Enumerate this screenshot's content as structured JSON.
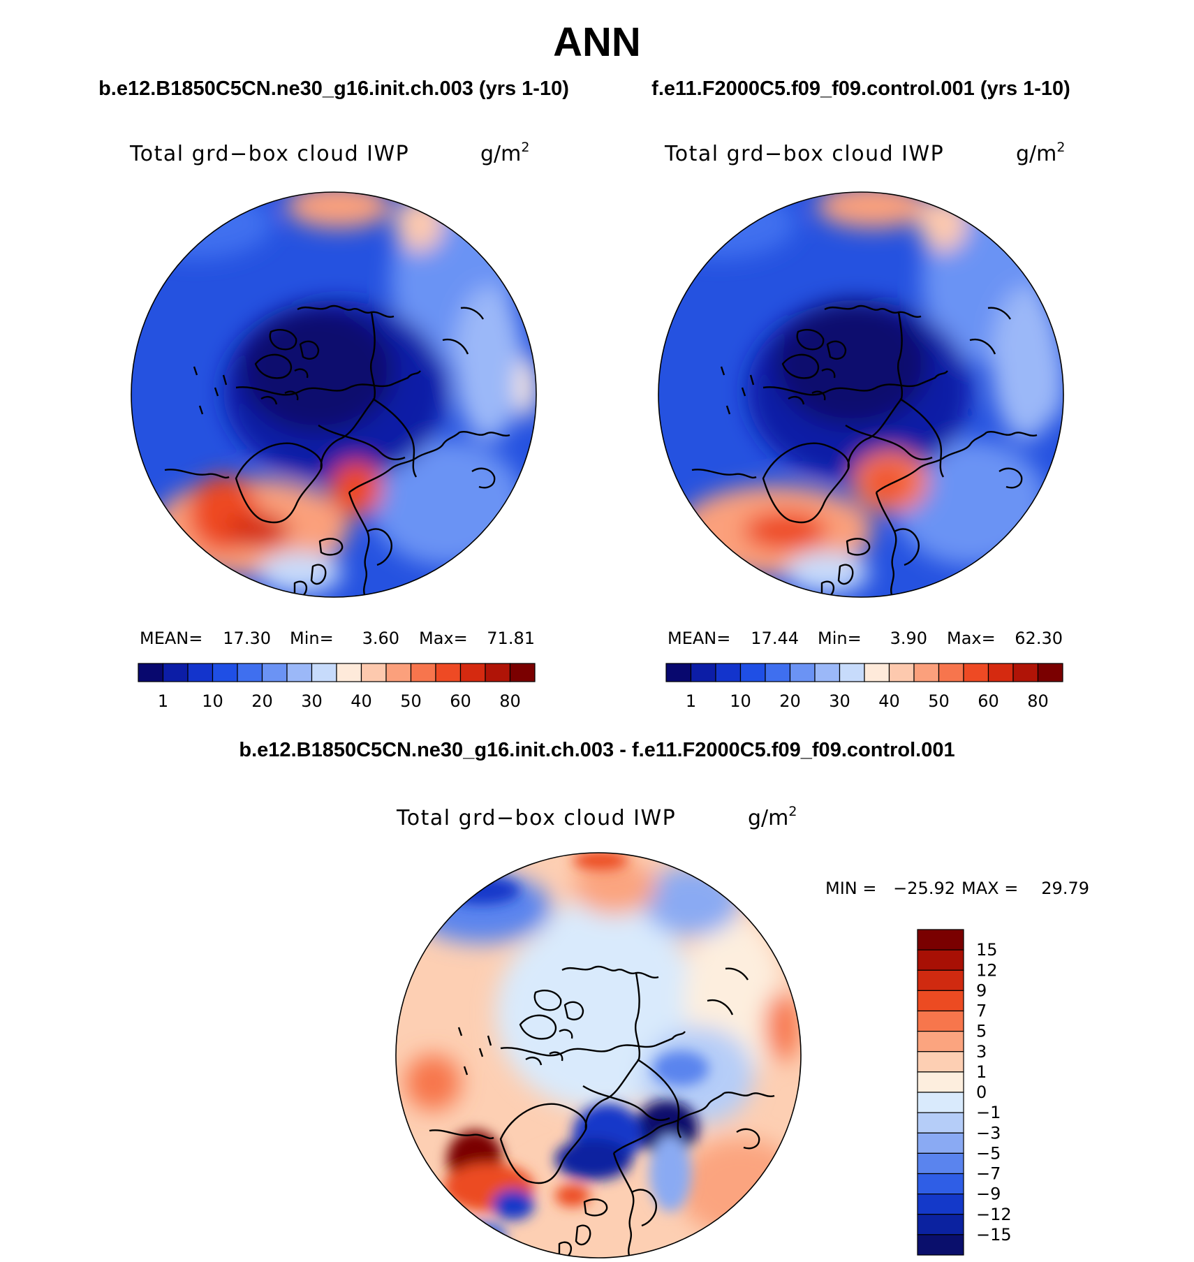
{
  "page": {
    "title": "ANN",
    "subtitle_left": "b.e12.B1850C5CN.ne30_g16.init.ch.003 (yrs 1-10)",
    "subtitle_right": "f.e11.F2000C5.f09_f09.control.001 (yrs 1-10)",
    "diff_title": "b.e12.B1850C5CN.ne30_g16.init.ch.003 - f.e11.F2000C5.f09_f09.control.001"
  },
  "chart_data": [
    {
      "type": "heatmap",
      "projection": "polar stereographic (north pole)",
      "variable": "Total grd−box cloud IWP",
      "units_base": "g/m",
      "units_exp": "2",
      "stats": {
        "mean_label": "MEAN=",
        "mean": "17.30",
        "min_label": "Min=",
        "min": "3.60",
        "max_label": "Max=",
        "max": "71.81"
      },
      "colorbar": {
        "colors": [
          "#08086e",
          "#0c1da6",
          "#1334cc",
          "#1f4fe5",
          "#3f6fef",
          "#6b93f4",
          "#9bb8f8",
          "#c7dbfb",
          "#feeada",
          "#fdc9ae",
          "#fba07c",
          "#f7754d",
          "#ee4a24",
          "#d52a10",
          "#b01407",
          "#7a0000"
        ],
        "tick_labels": [
          "1",
          "10",
          "20",
          "30",
          "40",
          "50",
          "60",
          "80"
        ]
      }
    },
    {
      "type": "heatmap",
      "projection": "polar stereographic (north pole)",
      "variable": "Total grd−box cloud IWP",
      "units_base": "g/m",
      "units_exp": "2",
      "stats": {
        "mean_label": "MEAN=",
        "mean": "17.44",
        "min_label": "Min=",
        "min": "3.90",
        "max_label": "Max=",
        "max": "62.30"
      },
      "colorbar": {
        "colors": [
          "#08086e",
          "#0c1da6",
          "#1334cc",
          "#1f4fe5",
          "#3f6fef",
          "#6b93f4",
          "#9bb8f8",
          "#c7dbfb",
          "#feeada",
          "#fdc9ae",
          "#fba07c",
          "#f7754d",
          "#ee4a24",
          "#d52a10",
          "#b01407",
          "#7a0000"
        ],
        "tick_labels": [
          "1",
          "10",
          "20",
          "30",
          "40",
          "50",
          "60",
          "80"
        ]
      }
    },
    {
      "type": "heatmap",
      "projection": "polar stereographic (north pole)",
      "variable": "Total grd−box cloud IWP",
      "units_base": "g/m",
      "units_exp": "2",
      "stats": {
        "min_label": "MIN =",
        "min": "−25.92",
        "max_label": "MAX =",
        "max": "29.79"
      },
      "colorbar": {
        "colors": [
          "#7a0000",
          "#a81005",
          "#d02a10",
          "#ec4b22",
          "#f7764c",
          "#fba47f",
          "#fdcfb3",
          "#fdeede",
          "#d9eafc",
          "#b5cdf8",
          "#8aaaf3",
          "#5a84ee",
          "#2f5ee6",
          "#1439c9",
          "#0b22a0",
          "#0a0f6c"
        ],
        "tick_labels": [
          "15",
          "12",
          "9",
          "7",
          "5",
          "3",
          "1",
          "0",
          "−1",
          "−3",
          "−5",
          "−7",
          "−9",
          "−12",
          "−15"
        ]
      }
    }
  ]
}
